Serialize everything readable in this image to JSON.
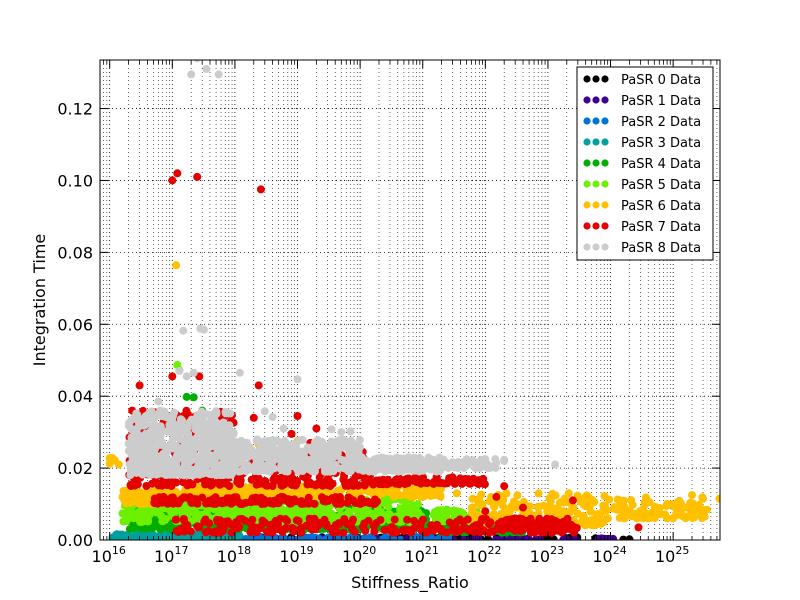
{
  "chart_data": {
    "type": "scatter",
    "title": "",
    "xlabel": "Stiffness_Ratio",
    "ylabel": "Integration Time",
    "x_scale": "log",
    "xlim": [
      7000000000000000.0,
      5.6e+25
    ],
    "ylim": [
      0,
      0.1335
    ],
    "x_ticks": [
      {
        "label": "10",
        "exp": "16",
        "value": 1e+16
      },
      {
        "label": "10",
        "exp": "17",
        "value": 1e+17
      },
      {
        "label": "10",
        "exp": "18",
        "value": 1e+18
      },
      {
        "label": "10",
        "exp": "19",
        "value": 1e+19
      },
      {
        "label": "10",
        "exp": "20",
        "value": 1e+20
      },
      {
        "label": "10",
        "exp": "21",
        "value": 1e+21
      },
      {
        "label": "10",
        "exp": "22",
        "value": 1e+22
      },
      {
        "label": "10",
        "exp": "23",
        "value": 1e+23
      },
      {
        "label": "10",
        "exp": "24",
        "value": 1e+24
      },
      {
        "label": "10",
        "exp": "25",
        "value": 1e+25
      }
    ],
    "y_ticks": [
      {
        "label": "0.00",
        "value": 0.0
      },
      {
        "label": "0.02",
        "value": 0.02
      },
      {
        "label": "0.04",
        "value": 0.04
      },
      {
        "label": "0.06",
        "value": 0.06
      },
      {
        "label": "0.08",
        "value": 0.08
      },
      {
        "label": "0.10",
        "value": 0.1
      },
      {
        "label": "0.12",
        "value": 0.12
      }
    ],
    "grid": true,
    "legend_position": "top-right",
    "series": [
      {
        "name": "PaSR 0 Data",
        "color": "#000000",
        "points": [
          [
            1.6e+24,
            0.0001
          ],
          [
            2e+24,
            0.0002
          ]
        ],
        "bands": [
          [
            1.2e+16,
            1e+24,
            0.0,
            0.0008,
            120
          ]
        ]
      },
      {
        "name": "PaSR 1 Data",
        "color": "#3f0096",
        "points": [
          [
            1.1e+24,
            0.0003
          ]
        ],
        "bands": [
          [
            1.2e+16,
            1.1e+24,
            0.0,
            0.0006,
            80
          ]
        ]
      },
      {
        "name": "PaSR 2 Data",
        "color": "#0072d9",
        "points": [],
        "bands": [
          [
            1.2e+16,
            3e+21,
            0.0,
            0.0009,
            120
          ]
        ]
      },
      {
        "name": "PaSR 3 Data",
        "color": "#00a0a0",
        "points": [],
        "bands": [
          [
            1.1e+16,
            1.2e+18,
            0.0,
            0.0018,
            200
          ]
        ]
      },
      {
        "name": "PaSR 4 Data",
        "color": "#00ad00",
        "points": [
          [
            3e+16,
            0.004
          ],
          [
            1.7e+17,
            0.0398
          ],
          [
            2.2e+17,
            0.0397
          ],
          [
            3e+17,
            0.036
          ]
        ],
        "bands": [
          [
            2e+16,
            1.2e+21,
            0.003,
            0.009,
            420
          ],
          [
            2e+21,
            4e+22,
            0.002,
            0.006,
            90
          ]
        ]
      },
      {
        "name": "PaSR 5 Data",
        "color": "#6cf000",
        "points": [
          [
            1.2e+17,
            0.0487
          ],
          [
            1.3e+17,
            0.0472
          ],
          [
            2e+16,
            0.0121
          ]
        ],
        "bands": [
          [
            1.6e+16,
            1e+21,
            0.005,
            0.012,
            480
          ],
          [
            1.5e+21,
            8e+21,
            0.005,
            0.0085,
            70
          ]
        ]
      },
      {
        "name": "PaSR 6 Data",
        "color": "#ffc000",
        "points": [
          [
            1.15e+17,
            0.0764
          ],
          [
            1e+16,
            0.0212
          ],
          [
            1.1e+16,
            0.0228
          ],
          [
            1.2e+16,
            0.0222
          ],
          [
            1.4e+16,
            0.021
          ],
          [
            1e+16,
            0.0228
          ],
          [
            2.4e+18,
            0.0265
          ],
          [
            1e+19,
            0.0275
          ],
          [
            3.5e+21,
            0.013
          ],
          [
            5e+23,
            0.0055
          ],
          [
            4e+24,
            0.006
          ],
          [
            5.5e+25,
            0.0115
          ],
          [
            1.5e+25,
            0.009
          ],
          [
            2e+25,
            0.0125
          ],
          [
            8e+24,
            0.01
          ],
          [
            1.2e+25,
            0.008
          ],
          [
            3e+25,
            0.0115
          ]
        ],
        "bands": [
          [
            1.5e+16,
            1e+17,
            0.01,
            0.014,
            60
          ],
          [
            1e+17,
            2e+21,
            0.012,
            0.015,
            260
          ],
          [
            6e+21,
            8e+23,
            0.004,
            0.013,
            200
          ],
          [
            8e+23,
            3.5e+25,
            0.006,
            0.012,
            90
          ]
        ]
      },
      {
        "name": "PaSR 7 Data",
        "color": "#e50000",
        "points": [
          [
            1.2e+17,
            0.102
          ],
          [
            1e+17,
            0.1
          ],
          [
            2.5e+17,
            0.101
          ],
          [
            2.6e+18,
            0.0975
          ],
          [
            3e+16,
            0.043
          ],
          [
            2.4e+18,
            0.043
          ],
          [
            2.7e+17,
            0.0455
          ],
          [
            1e+17,
            0.0455
          ],
          [
            1e+19,
            0.0345
          ],
          [
            2e+19,
            0.031
          ],
          [
            1.1e+20,
            0.0245
          ],
          [
            8e+18,
            0.0295
          ],
          [
            1.6e+19,
            0.027
          ],
          [
            2e+18,
            0.034
          ],
          [
            1e+22,
            0.008
          ],
          [
            3e+22,
            0.006
          ],
          [
            2.5e+23,
            0.011
          ],
          [
            2.8e+24,
            0.0035
          ],
          [
            2e+22,
            0.015
          ],
          [
            8e+21,
            0.0165
          ],
          [
            1.5e+22,
            0.012
          ],
          [
            4e+22,
            0.009
          ]
        ],
        "bands": [
          [
            2e+16,
            1e+18,
            0.015,
            0.036,
            260
          ],
          [
            1e+18,
            2e+20,
            0.015,
            0.024,
            180
          ],
          [
            2e+20,
            1e+22,
            0.0155,
            0.0175,
            70
          ],
          [
            5e+16,
            2e+20,
            0.01,
            0.012,
            160
          ],
          [
            1e+17,
            3e+23,
            0.002,
            0.006,
            240
          ],
          [
            2e+22,
            3e+23,
            0.003,
            0.006,
            60
          ]
        ]
      },
      {
        "name": "PaSR 8 Data",
        "color": "#cccccc",
        "points": [
          [
            2.5e+17,
            0.134
          ],
          [
            3.5e+17,
            0.131
          ],
          [
            5.5e+17,
            0.1295
          ],
          [
            2e+17,
            0.1295
          ],
          [
            1.5e+17,
            0.0582
          ],
          [
            2.8e+17,
            0.0588
          ],
          [
            3.2e+17,
            0.0585
          ],
          [
            1.3e+17,
            0.047
          ],
          [
            1.7e+17,
            0.0455
          ],
          [
            2.2e+17,
            0.0465
          ],
          [
            1.2e+18,
            0.0465
          ],
          [
            1e+19,
            0.0447
          ],
          [
            3.5e+19,
            0.0308
          ],
          [
            5e+19,
            0.03
          ],
          [
            7e+19,
            0.0302
          ],
          [
            3e+18,
            0.0358
          ],
          [
            4e+18,
            0.0342
          ],
          [
            6e+18,
            0.031
          ],
          [
            1e+22,
            0.0225
          ],
          [
            2e+22,
            0.022
          ],
          [
            1.3e+23,
            0.021
          ],
          [
            2e+22,
            0.0223
          ],
          [
            5e+21,
            0.0225
          ],
          [
            3.5e+16,
            0.027
          ],
          [
            5e+16,
            0.0335
          ],
          [
            6e+16,
            0.0385
          ]
        ],
        "bands": [
          [
            2e+16,
            1e+18,
            0.018,
            0.036,
            520
          ],
          [
            1e+18,
            1e+20,
            0.019,
            0.028,
            300
          ],
          [
            1e+20,
            2e+21,
            0.019,
            0.023,
            140
          ],
          [
            2e+21,
            1.5e+22,
            0.02,
            0.0225,
            40
          ]
        ]
      }
    ]
  }
}
